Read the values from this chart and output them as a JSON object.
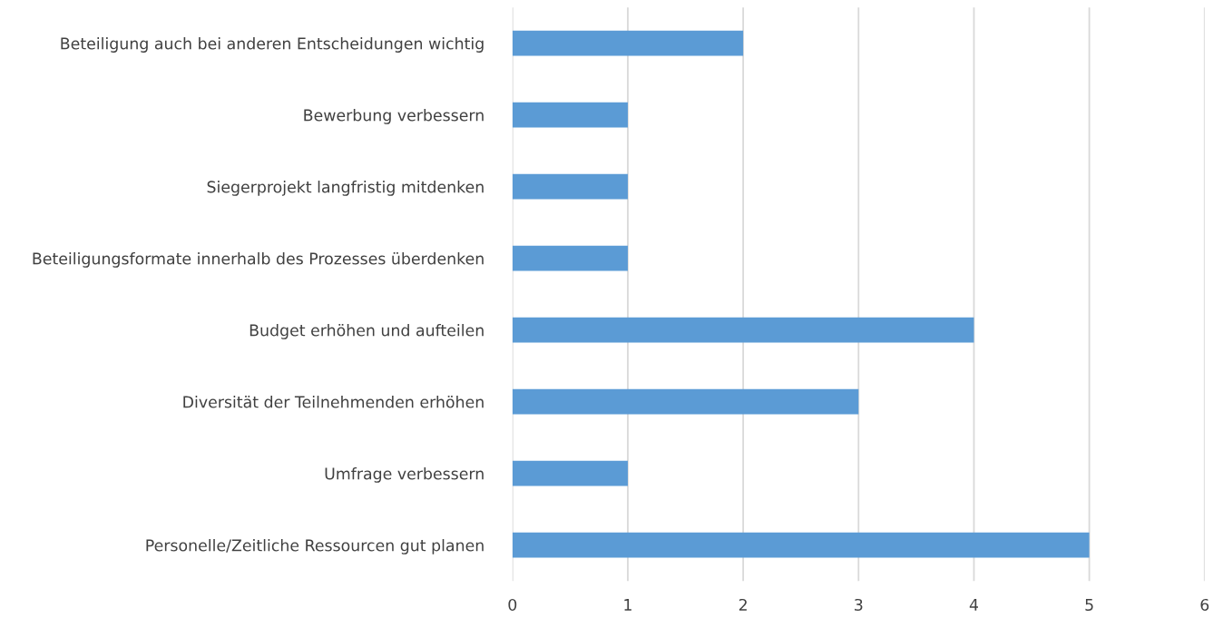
{
  "chart_data": {
    "type": "bar",
    "orientation": "horizontal",
    "categories": [
      "Beteiligung auch bei anderen Entscheidungen wichtig",
      "Bewerbung verbessern",
      "Siegerprojekt langfristig mitdenken",
      "Beteiligungsformate innerhalb des Prozesses überdenken",
      "Budget erhöhen und aufteilen",
      "Diversität der Teilnehmenden erhöhen",
      "Umfrage verbessern",
      "Personelle/Zeitliche Ressourcen gut planen"
    ],
    "values": [
      2,
      1,
      1,
      1,
      4,
      3,
      1,
      5
    ],
    "color": "#5b9bd5",
    "xlim": [
      0,
      6
    ],
    "xticks": [
      0,
      1,
      2,
      3,
      4,
      5,
      6
    ],
    "grid": "x",
    "legend": false
  }
}
